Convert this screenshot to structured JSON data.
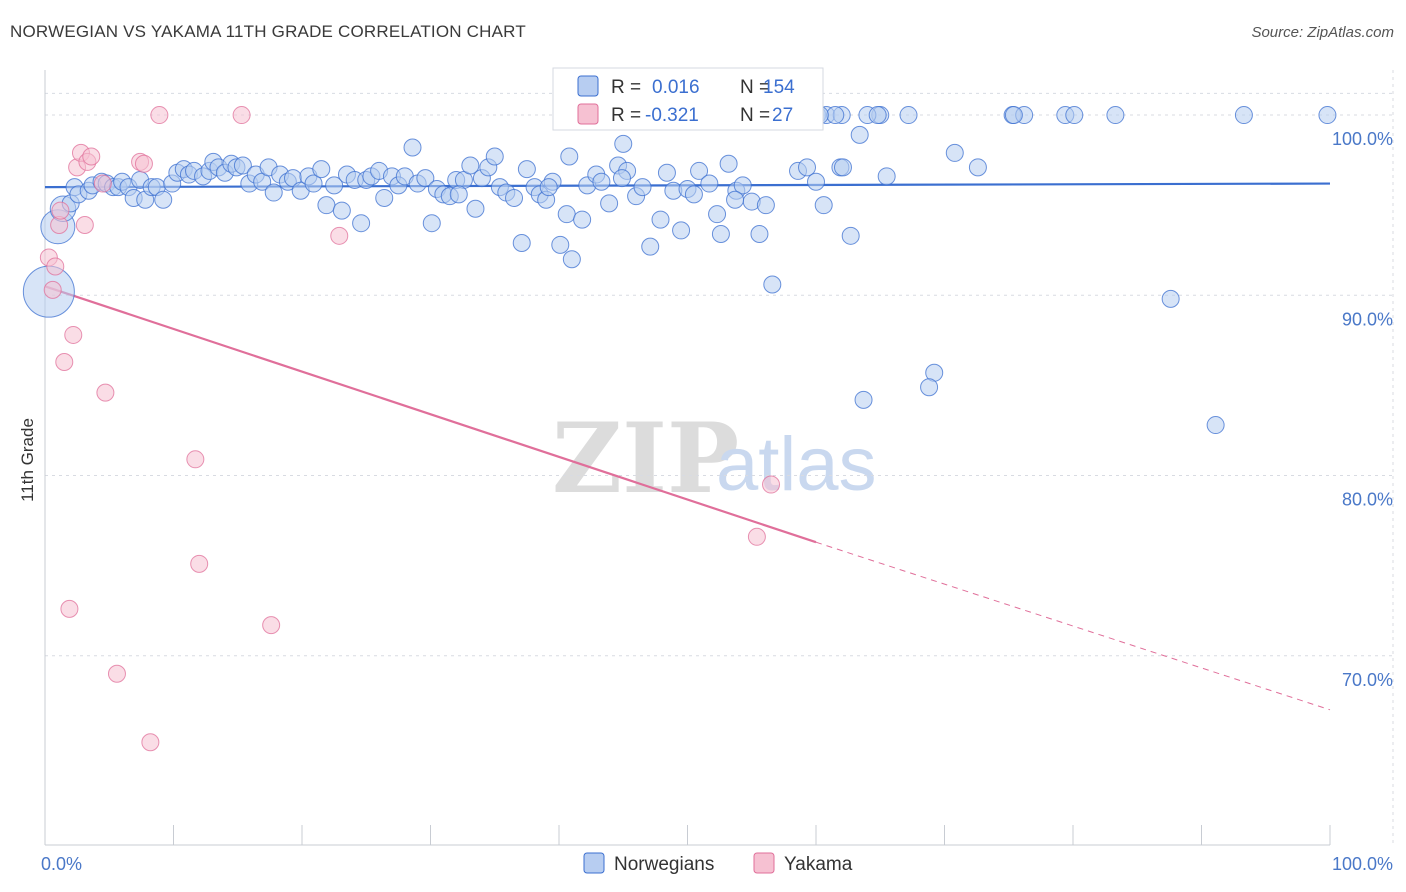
{
  "title": "NORWEGIAN VS YAKAMA 11TH GRADE CORRELATION CHART",
  "source": "Source: ZipAtlas.com",
  "watermark": {
    "part1": "ZIP",
    "part2": "atlas"
  },
  "colors": {
    "blue": "#3b6fd0",
    "blue_fill": "#b7cdf1",
    "pink": "#e06f9a",
    "pink_fill": "#f6c1d2",
    "grid": "#d8dbe2",
    "axis_text": "#4a78c8"
  },
  "legend": {
    "r_label": "R =",
    "n_label": "N =",
    "rows": [
      {
        "r": "0.016",
        "n": "154",
        "color": "blue"
      },
      {
        "r": "-0.321",
        "n": "27",
        "color": "pink"
      }
    ]
  },
  "chart_data": {
    "type": "scatter",
    "xlabel": "",
    "ylabel": "11th Grade",
    "xlim": [
      0,
      100
    ],
    "ylim": [
      59.5,
      102.5
    ],
    "x_tick_labels": [
      {
        "value": 0,
        "label": "0.0%"
      },
      {
        "value": 100,
        "label": "100.0%"
      }
    ],
    "y_tick_labels": [
      {
        "value": 100,
        "label": "100.0%"
      },
      {
        "value": 90,
        "label": "90.0%"
      },
      {
        "value": 80,
        "label": "80.0%"
      },
      {
        "value": 70,
        "label": "70.0%"
      }
    ],
    "grid": true,
    "legend_position": "top-center",
    "series": [
      {
        "name": "Norwegians",
        "color": "blue",
        "trend": {
          "x": [
            0,
            100
          ],
          "y": [
            96.0,
            96.2
          ]
        },
        "points": [
          [
            0.3,
            90.2,
            3
          ],
          [
            1.0,
            93.8,
            2
          ],
          [
            1.4,
            94.8,
            1.5
          ],
          [
            2.0,
            95.1,
            1
          ],
          [
            2.3,
            96.0,
            1
          ],
          [
            2.6,
            95.6,
            1
          ],
          [
            3.4,
            95.8,
            1
          ],
          [
            3.7,
            96.1,
            1
          ],
          [
            4.4,
            96.3,
            1
          ],
          [
            4.8,
            96.2,
            1
          ],
          [
            5.3,
            96.0,
            1
          ],
          [
            5.7,
            96.0,
            1
          ],
          [
            6.0,
            96.3,
            1
          ],
          [
            6.5,
            96.0,
            1
          ],
          [
            6.9,
            95.4,
            1
          ],
          [
            7.4,
            96.4,
            1
          ],
          [
            7.8,
            95.3,
            1
          ],
          [
            8.3,
            96.0,
            1
          ],
          [
            8.7,
            96.0,
            1
          ],
          [
            9.2,
            95.3,
            1
          ],
          [
            9.9,
            96.2,
            1
          ],
          [
            10.3,
            96.8,
            1
          ],
          [
            10.8,
            97.0,
            1
          ],
          [
            11.2,
            96.7,
            1
          ],
          [
            11.6,
            96.9,
            1
          ],
          [
            12.3,
            96.6,
            1
          ],
          [
            12.8,
            96.9,
            1
          ],
          [
            13.1,
            97.4,
            1
          ],
          [
            13.5,
            97.1,
            1
          ],
          [
            14.0,
            96.8,
            1
          ],
          [
            14.5,
            97.3,
            1
          ],
          [
            14.9,
            97.1,
            1
          ],
          [
            15.4,
            97.2,
            1
          ],
          [
            15.9,
            96.2,
            1
          ],
          [
            16.4,
            96.7,
            1
          ],
          [
            16.9,
            96.3,
            1
          ],
          [
            17.4,
            97.1,
            1
          ],
          [
            17.8,
            95.7,
            1
          ],
          [
            18.3,
            96.7,
            1
          ],
          [
            18.9,
            96.3,
            1
          ],
          [
            19.3,
            96.5,
            1
          ],
          [
            19.9,
            95.8,
            1
          ],
          [
            20.5,
            96.6,
            1
          ],
          [
            20.9,
            96.2,
            1
          ],
          [
            21.5,
            97.0,
            1
          ],
          [
            21.9,
            95.0,
            1
          ],
          [
            22.5,
            96.1,
            1
          ],
          [
            23.1,
            94.7,
            1
          ],
          [
            23.5,
            96.7,
            1
          ],
          [
            24.1,
            96.4,
            1
          ],
          [
            24.6,
            94.0,
            1
          ],
          [
            25.0,
            96.4,
            1
          ],
          [
            25.4,
            96.6,
            1
          ],
          [
            26.0,
            96.9,
            1
          ],
          [
            26.4,
            95.4,
            1
          ],
          [
            27.0,
            96.6,
            1
          ],
          [
            27.5,
            96.1,
            1
          ],
          [
            28.0,
            96.6,
            1
          ],
          [
            28.6,
            98.2,
            1
          ],
          [
            29.0,
            96.2,
            1
          ],
          [
            29.6,
            96.5,
            1
          ],
          [
            30.1,
            94.0,
            1
          ],
          [
            30.5,
            95.9,
            1
          ],
          [
            31.0,
            95.6,
            1
          ],
          [
            31.5,
            95.5,
            1
          ],
          [
            32.0,
            96.4,
            1
          ],
          [
            32.6,
            96.4,
            1
          ],
          [
            33.1,
            97.2,
            1
          ],
          [
            33.5,
            94.8,
            1
          ],
          [
            34.0,
            96.5,
            1
          ],
          [
            34.5,
            97.1,
            1
          ],
          [
            35.0,
            97.7,
            1
          ],
          [
            35.4,
            96.0,
            1
          ],
          [
            35.9,
            95.7,
            1
          ],
          [
            36.5,
            95.4,
            1
          ],
          [
            37.1,
            92.9,
            1
          ],
          [
            37.5,
            97.0,
            1
          ],
          [
            38.1,
            96.0,
            1
          ],
          [
            38.5,
            95.6,
            1
          ],
          [
            39.0,
            95.3,
            1
          ],
          [
            39.5,
            96.3,
            1
          ],
          [
            40.1,
            92.8,
            1
          ],
          [
            40.6,
            94.5,
            1
          ],
          [
            41.0,
            92.0,
            1
          ],
          [
            41.8,
            94.2,
            1
          ],
          [
            42.2,
            96.1,
            1
          ],
          [
            42.9,
            96.7,
            1
          ],
          [
            43.3,
            96.3,
            1
          ],
          [
            43.9,
            95.1,
            1
          ],
          [
            44.6,
            97.2,
            1
          ],
          [
            45.3,
            96.9,
            1
          ],
          [
            46.0,
            95.5,
            1
          ],
          [
            46.5,
            96.0,
            1
          ],
          [
            47.1,
            92.7,
            1
          ],
          [
            47.9,
            94.2,
            1
          ],
          [
            48.4,
            96.8,
            1
          ],
          [
            48.9,
            95.8,
            1
          ],
          [
            49.5,
            93.6,
            1
          ],
          [
            50.0,
            95.9,
            1
          ],
          [
            50.5,
            95.6,
            1
          ],
          [
            50.9,
            96.9,
            1
          ],
          [
            51.7,
            96.2,
            1
          ],
          [
            52.3,
            94.5,
            1
          ],
          [
            52.6,
            93.4,
            1
          ],
          [
            53.2,
            97.3,
            1
          ],
          [
            53.8,
            95.8,
            1
          ],
          [
            54.3,
            96.1,
            1
          ],
          [
            55.0,
            95.2,
            1
          ],
          [
            55.6,
            93.4,
            1
          ],
          [
            56.1,
            95.0,
            1
          ],
          [
            56.6,
            90.6,
            1
          ],
          [
            58.6,
            96.9,
            1
          ],
          [
            59.3,
            97.1,
            1
          ],
          [
            60.0,
            96.3,
            1
          ],
          [
            60.6,
            95.0,
            1
          ],
          [
            61.9,
            97.1,
            1
          ],
          [
            62.1,
            97.1,
            1
          ],
          [
            62.7,
            93.3,
            1
          ],
          [
            63.4,
            98.9,
            1
          ],
          [
            65.5,
            96.6,
            1
          ],
          [
            69.2,
            85.7,
            1
          ],
          [
            68.8,
            84.9,
            1
          ],
          [
            70.8,
            97.9,
            1
          ],
          [
            72.6,
            97.1,
            1
          ],
          [
            75.3,
            100,
            1
          ],
          [
            76.2,
            100,
            1
          ],
          [
            87.6,
            89.8,
            1
          ],
          [
            91.1,
            82.8,
            1
          ],
          [
            63.7,
            84.2,
            1
          ],
          [
            60.1,
            100,
            1
          ],
          [
            60.8,
            100,
            1
          ],
          [
            62.0,
            100,
            1
          ],
          [
            65.0,
            100,
            1
          ],
          [
            67.2,
            100,
            1
          ],
          [
            57.3,
            100,
            1
          ],
          [
            56.1,
            100,
            1
          ],
          [
            50.0,
            100,
            1
          ],
          [
            49.3,
            100,
            1
          ],
          [
            61.5,
            100,
            1
          ],
          [
            45.0,
            98.4,
            1
          ],
          [
            32.2,
            95.6,
            1
          ],
          [
            39.2,
            96.0,
            1
          ],
          [
            44.9,
            96.5,
            1
          ],
          [
            40.8,
            97.7,
            1
          ],
          [
            53.7,
            95.3,
            1
          ],
          [
            79.4,
            100,
            1
          ],
          [
            83.3,
            100,
            1
          ],
          [
            56.9,
            100,
            1
          ],
          [
            59.0,
            100,
            1
          ],
          [
            80.1,
            100,
            1
          ],
          [
            93.3,
            100,
            1
          ],
          [
            99.8,
            100,
            1
          ],
          [
            60.3,
            100,
            1
          ],
          [
            64.0,
            100,
            1
          ],
          [
            64.8,
            100,
            1
          ],
          [
            75.4,
            100,
            1
          ]
        ]
      },
      {
        "name": "Yakama",
        "color": "pink",
        "trend": {
          "x": [
            0,
            60
          ],
          "y": [
            90.5,
            76.3
          ]
        },
        "trend_dashed": {
          "x": [
            60,
            100
          ],
          "y": [
            76.3,
            67.0
          ]
        },
        "points": [
          [
            0.3,
            92.1,
            1
          ],
          [
            0.6,
            90.3,
            1
          ],
          [
            0.8,
            91.6,
            1
          ],
          [
            1.1,
            93.9,
            1
          ],
          [
            1.2,
            94.7,
            1
          ],
          [
            1.5,
            86.3,
            1
          ],
          [
            1.9,
            72.6,
            1
          ],
          [
            2.2,
            87.8,
            1
          ],
          [
            2.5,
            97.1,
            1
          ],
          [
            2.8,
            97.9,
            1
          ],
          [
            3.3,
            97.4,
            1
          ],
          [
            3.1,
            93.9,
            1
          ],
          [
            3.6,
            97.7,
            1
          ],
          [
            4.5,
            96.2,
            1
          ],
          [
            4.7,
            84.6,
            1
          ],
          [
            5.6,
            69.0,
            1
          ],
          [
            7.4,
            97.4,
            1
          ],
          [
            7.7,
            97.3,
            1
          ],
          [
            8.2,
            65.2,
            1
          ],
          [
            8.9,
            100,
            1
          ],
          [
            11.7,
            80.9,
            1
          ],
          [
            12.0,
            75.1,
            1
          ],
          [
            15.3,
            100,
            1
          ],
          [
            17.6,
            71.7,
            1
          ],
          [
            22.9,
            93.3,
            1
          ],
          [
            55.4,
            76.6,
            1
          ],
          [
            56.5,
            79.5,
            1
          ]
        ]
      }
    ]
  }
}
